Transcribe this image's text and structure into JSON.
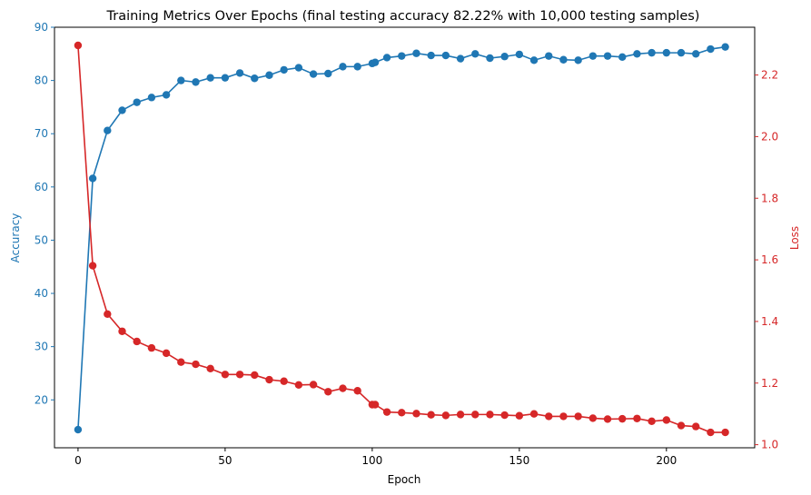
{
  "chart_data": {
    "type": "line",
    "title": "Training Metrics Over Epochs (final testing accuracy 82.22% with 10,000 testing samples)",
    "xlabel": "Epoch",
    "ylabel_left": "Accuracy",
    "ylabel_right": "Loss",
    "xlim": [
      -8,
      230
    ],
    "ylim_left": [
      11,
      90
    ],
    "ylim_right": [
      0.99,
      2.355
    ],
    "x_ticks": [
      0,
      50,
      100,
      150,
      200
    ],
    "y_left_ticks": [
      20,
      30,
      40,
      50,
      60,
      70,
      80,
      90
    ],
    "y_right_ticks": [
      "1.0",
      "1.2",
      "1.4",
      "1.6",
      "1.8",
      "2.0",
      "2.2"
    ],
    "grid": false,
    "colors": {
      "accuracy": "#1f77b4",
      "loss": "#d62728"
    },
    "x": [
      0,
      5,
      10,
      15,
      20,
      25,
      30,
      35,
      40,
      45,
      50,
      55,
      60,
      65,
      70,
      75,
      80,
      85,
      90,
      95,
      100,
      101,
      105,
      110,
      115,
      120,
      125,
      130,
      135,
      140,
      145,
      150,
      155,
      160,
      165,
      170,
      175,
      180,
      185,
      190,
      195,
      200,
      205,
      210,
      215,
      220
    ],
    "series": [
      {
        "axis": "left",
        "values": [
          14.4,
          61.6,
          70.6,
          74.4,
          75.9,
          76.8,
          77.3,
          80.0,
          79.7,
          80.5,
          80.5,
          81.4,
          80.4,
          81.0,
          82.0,
          82.4,
          81.2,
          81.3,
          82.6,
          82.6,
          83.2,
          83.4,
          84.3,
          84.6,
          85.1,
          84.7,
          84.7,
          84.1,
          85.0,
          84.2,
          84.5,
          84.9,
          83.8,
          84.6,
          83.9,
          83.8,
          84.6,
          84.6,
          84.4,
          85.0,
          85.2,
          85.2,
          85.2,
          85.0,
          85.9,
          86.3
        ]
      },
      {
        "axis": "right",
        "values": [
          2.296,
          1.581,
          1.424,
          1.368,
          1.335,
          1.314,
          1.297,
          1.268,
          1.261,
          1.247,
          1.228,
          1.228,
          1.226,
          1.211,
          1.206,
          1.194,
          1.195,
          1.172,
          1.183,
          1.175,
          1.13,
          1.13,
          1.106,
          1.104,
          1.101,
          1.097,
          1.095,
          1.098,
          1.098,
          1.098,
          1.096,
          1.094,
          1.1,
          1.092,
          1.092,
          1.092,
          1.086,
          1.083,
          1.084,
          1.085,
          1.076,
          1.08,
          1.062,
          1.059,
          1.04,
          1.04
        ]
      }
    ]
  }
}
